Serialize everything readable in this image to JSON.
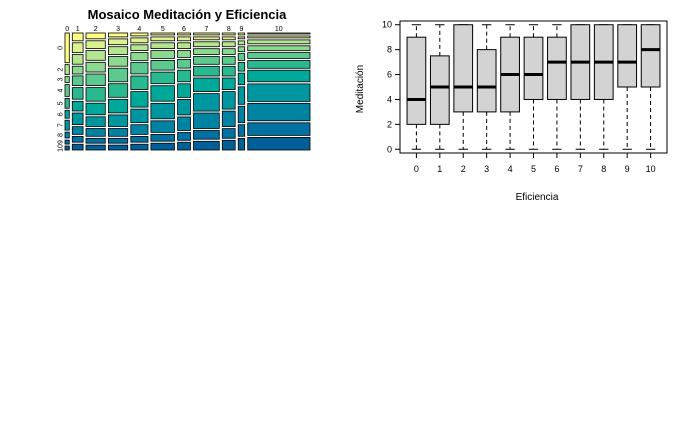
{
  "chart_data": [
    {
      "type": "mosaic",
      "title": "Mosaico Meditación y Eficiencia",
      "x_categories": [
        "0",
        "1",
        "2",
        "3",
        "4",
        "5",
        "6",
        "7",
        "8",
        "9",
        "10"
      ],
      "y_categories": [
        "0",
        "1",
        "2",
        "3",
        "4",
        "5",
        "6",
        "7",
        "8",
        "9",
        "10"
      ],
      "x_shares": [
        0.02,
        0.05,
        0.09,
        0.09,
        0.08,
        0.11,
        0.06,
        0.12,
        0.06,
        0.03,
        0.29
      ],
      "cell_shares": [
        [
          0.3,
          0.0,
          0.1,
          0.06,
          0.12,
          0.1,
          0.08,
          0.1,
          0.06,
          0.04,
          0.04
        ],
        [
          0.08,
          0.1,
          0.1,
          0.08,
          0.1,
          0.12,
          0.1,
          0.12,
          0.08,
          0.06,
          0.06
        ],
        [
          0.06,
          0.08,
          0.1,
          0.1,
          0.12,
          0.14,
          0.12,
          0.1,
          0.08,
          0.05,
          0.05
        ],
        [
          0.04,
          0.06,
          0.08,
          0.1,
          0.14,
          0.14,
          0.14,
          0.12,
          0.08,
          0.05,
          0.05
        ],
        [
          0.03,
          0.05,
          0.06,
          0.08,
          0.12,
          0.14,
          0.16,
          0.14,
          0.1,
          0.06,
          0.06
        ],
        [
          0.02,
          0.04,
          0.06,
          0.08,
          0.1,
          0.12,
          0.16,
          0.16,
          0.12,
          0.07,
          0.07
        ],
        [
          0.02,
          0.04,
          0.06,
          0.07,
          0.09,
          0.12,
          0.14,
          0.16,
          0.14,
          0.08,
          0.08
        ],
        [
          0.02,
          0.03,
          0.05,
          0.06,
          0.08,
          0.1,
          0.14,
          0.18,
          0.16,
          0.09,
          0.09
        ],
        [
          0.02,
          0.03,
          0.05,
          0.06,
          0.08,
          0.1,
          0.12,
          0.18,
          0.16,
          0.1,
          0.1
        ],
        [
          0.02,
          0.02,
          0.04,
          0.05,
          0.07,
          0.09,
          0.12,
          0.18,
          0.17,
          0.12,
          0.12
        ],
        [
          0.01,
          0.02,
          0.04,
          0.05,
          0.06,
          0.08,
          0.12,
          0.18,
          0.18,
          0.13,
          0.13
        ]
      ],
      "colors": [
        "#FDFF80",
        "#DBF28E",
        "#B5E68F",
        "#8BD88F",
        "#5CC98F",
        "#2AB98F",
        "#00A899",
        "#00969F",
        "#0083A3",
        "#0071A0",
        "#005F97"
      ]
    },
    {
      "type": "boxplot",
      "title": "",
      "xlabel": "Eficiencia",
      "ylabel": "Meditación",
      "categories": [
        "0",
        "1",
        "2",
        "3",
        "4",
        "5",
        "6",
        "7",
        "8",
        "9",
        "10"
      ],
      "ylim": [
        0,
        10
      ],
      "yticks": [
        0,
        2,
        4,
        6,
        8,
        10
      ],
      "box_fill": "#D3D3D3",
      "boxes": [
        {
          "min": 0,
          "q1": 2,
          "median": 4,
          "q3": 9,
          "max": 10
        },
        {
          "min": 0,
          "q1": 2,
          "median": 5,
          "q3": 7.5,
          "max": 10
        },
        {
          "min": 0,
          "q1": 3,
          "median": 5,
          "q3": 10,
          "max": 10
        },
        {
          "min": 0,
          "q1": 3,
          "median": 5,
          "q3": 8,
          "max": 10
        },
        {
          "min": 0,
          "q1": 3,
          "median": 6,
          "q3": 9,
          "max": 10
        },
        {
          "min": 0,
          "q1": 4,
          "median": 6,
          "q3": 9,
          "max": 10
        },
        {
          "min": 0,
          "q1": 4,
          "median": 7,
          "q3": 9,
          "max": 10
        },
        {
          "min": 0,
          "q1": 4,
          "median": 7,
          "q3": 10,
          "max": 10
        },
        {
          "min": 0,
          "q1": 4,
          "median": 7,
          "q3": 10,
          "max": 10
        },
        {
          "min": 0,
          "q1": 5,
          "median": 7,
          "q3": 10,
          "max": 10
        },
        {
          "min": 0,
          "q1": 5,
          "median": 8,
          "q3": 10,
          "max": 10
        }
      ]
    }
  ]
}
